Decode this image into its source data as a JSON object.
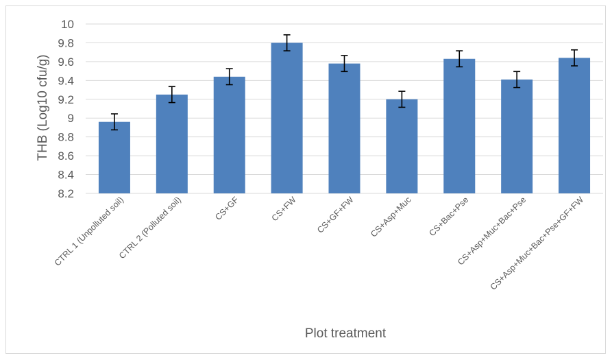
{
  "chart_data": {
    "type": "bar",
    "title": "",
    "xlabel": "Plot treatment",
    "ylabel": "THB (Log10 cfu/g)",
    "ylim": [
      8.2,
      10
    ],
    "yticks": [
      8.2,
      8.4,
      8.6,
      8.8,
      9,
      9.2,
      9.4,
      9.6,
      9.8,
      10
    ],
    "grid": true,
    "legend": "none",
    "bar_color": "#4f81bd",
    "categories": [
      "CTRL 1 (Unpolluted soil)",
      "CTRL 2 (Polluted soil)",
      "CS+GF",
      "CS+FW",
      "CS+GF+FW",
      "CS+Asp+Muc",
      "CS+Bac+Pse",
      "CS+Asp+Muc+Bac+Pse",
      "CS+Asp+Muc+Bac+Pse+GF+FW"
    ],
    "values": [
      8.96,
      9.25,
      9.44,
      9.8,
      9.58,
      9.2,
      9.63,
      9.41,
      9.64
    ],
    "error": [
      0.085,
      0.085,
      0.085,
      0.085,
      0.085,
      0.085,
      0.085,
      0.085,
      0.085
    ]
  }
}
